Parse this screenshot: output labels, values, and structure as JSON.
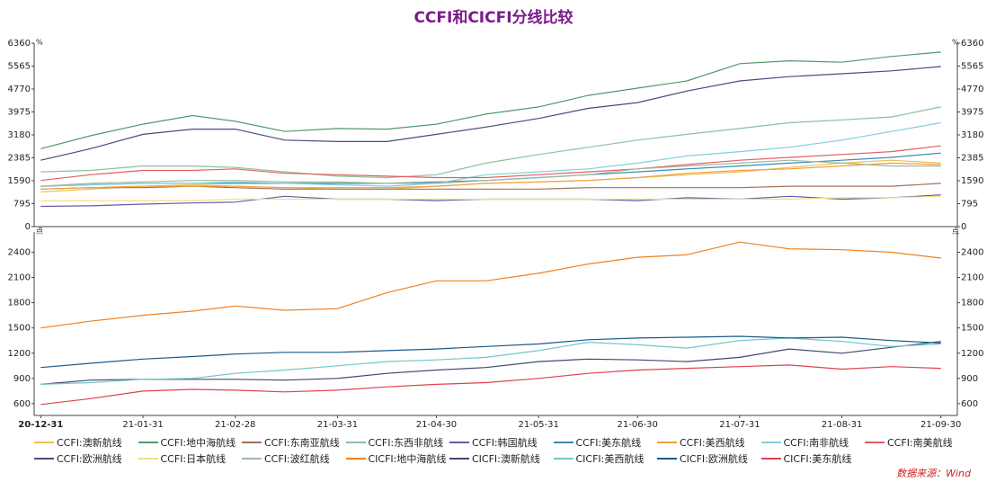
{
  "chart_data": [
    {
      "type": "line",
      "title": "CCFI和CICFI分线比较",
      "y_label": "%",
      "legend": "bottom",
      "x": [
        "20-12-31",
        "21-01-15",
        "21-01-31",
        "21-02-15",
        "21-02-28",
        "21-03-15",
        "21-03-31",
        "21-04-15",
        "21-04-30",
        "21-05-15",
        "21-05-31",
        "21-06-15",
        "21-06-30",
        "21-07-15",
        "21-07-31",
        "21-08-15",
        "21-08-31",
        "21-09-15",
        "21-09-30"
      ],
      "xlim": [
        "20-12-29",
        "21-10-05"
      ],
      "ylim": [
        0,
        6360
      ],
      "yticks": [
        0,
        795,
        1590,
        2385,
        3180,
        3975,
        4770,
        5565,
        6360
      ],
      "series": [
        {
          "name": "CCFI:澳新航线",
          "color": "#e8c050",
          "values": [
            1200,
            1300,
            1400,
            1450,
            1400,
            1350,
            1300,
            1300,
            1400,
            1500,
            1550,
            1600,
            1700,
            1800,
            1900,
            2050,
            2200,
            2300,
            2200
          ]
        },
        {
          "name": "CCFI:地中海航线",
          "color": "#4f9a6a",
          "values": [
            2700,
            3150,
            3550,
            3850,
            3650,
            3300,
            3400,
            3380,
            3550,
            3900,
            4150,
            4550,
            4800,
            5050,
            5650,
            5750,
            5700,
            5900,
            6050
          ]
        },
        {
          "name": "CCFI:东南亚航线",
          "color": "#a0705a",
          "values": [
            1300,
            1350,
            1350,
            1400,
            1350,
            1300,
            1300,
            1300,
            1300,
            1300,
            1300,
            1350,
            1350,
            1350,
            1350,
            1400,
            1400,
            1400,
            1500
          ]
        },
        {
          "name": "CCFI:东西非航线",
          "color": "#8cc0a0",
          "values": [
            1900,
            1950,
            2100,
            2100,
            2050,
            1900,
            1750,
            1700,
            1800,
            2200,
            2500,
            2750,
            3000,
            3200,
            3400,
            3600,
            3700,
            3800,
            4150
          ]
        },
        {
          "name": "CCFI:韩国航线",
          "color": "#6a5aa8",
          "values": [
            700,
            720,
            780,
            820,
            850,
            1050,
            950,
            950,
            900,
            950,
            950,
            950,
            900,
            1000,
            950,
            1050,
            950,
            1000,
            1100
          ]
        },
        {
          "name": "CCFI:美东航线",
          "color": "#3a8ab0",
          "values": [
            1400,
            1450,
            1500,
            1500,
            1500,
            1500,
            1500,
            1500,
            1550,
            1600,
            1700,
            1800,
            1900,
            2000,
            2100,
            2200,
            2300,
            2400,
            2550
          ]
        },
        {
          "name": "CCFI:美西航线",
          "color": "#f0a040",
          "values": [
            1300,
            1350,
            1400,
            1400,
            1400,
            1350,
            1350,
            1350,
            1400,
            1500,
            1550,
            1600,
            1700,
            1850,
            1950,
            2000,
            2100,
            2200,
            2150
          ]
        },
        {
          "name": "CCFI:南非航线",
          "color": "#80d0dc",
          "values": [
            1400,
            1450,
            1500,
            1500,
            1550,
            1500,
            1450,
            1400,
            1500,
            1800,
            1900,
            2000,
            2200,
            2450,
            2600,
            2750,
            3000,
            3300,
            3600
          ]
        },
        {
          "name": "CCFI:南美航线",
          "color": "#e06060",
          "values": [
            1600,
            1800,
            1950,
            1950,
            2000,
            1850,
            1800,
            1750,
            1700,
            1700,
            1800,
            1900,
            2000,
            2150,
            2300,
            2400,
            2500,
            2600,
            2800
          ]
        },
        {
          "name": "CCFI:欧洲航线",
          "color": "#4a4a80",
          "values": [
            2300,
            2700,
            3200,
            3380,
            3380,
            3000,
            2950,
            2950,
            3200,
            3450,
            3750,
            4100,
            4300,
            4700,
            5050,
            5200,
            5300,
            5400,
            5550
          ]
        },
        {
          "name": "CCFI:日本航线",
          "color": "#f0e080",
          "values": [
            900,
            900,
            900,
            900,
            950,
            950,
            950,
            950,
            950,
            950,
            950,
            950,
            950,
            950,
            950,
            950,
            1000,
            1000,
            1050
          ]
        },
        {
          "name": "CCFI:波红航线",
          "color": "#a0b8a0",
          "values": [
            1400,
            1500,
            1550,
            1600,
            1600,
            1550,
            1550,
            1500,
            1500,
            1600,
            1700,
            1800,
            2000,
            2100,
            2200,
            2300,
            2200,
            2100,
            2100
          ]
        }
      ]
    },
    {
      "type": "line",
      "y_label": "点",
      "x": [
        "20-12-31",
        "21-01-15",
        "21-01-31",
        "21-02-15",
        "21-02-28",
        "21-03-15",
        "21-03-31",
        "21-04-15",
        "21-04-30",
        "21-05-15",
        "21-05-31",
        "21-06-15",
        "21-06-30",
        "21-07-15",
        "21-07-31",
        "21-08-15",
        "21-08-31",
        "21-09-15",
        "21-09-30"
      ],
      "xlim": [
        "20-12-29",
        "21-10-05"
      ],
      "xticks": [
        "20-12-31",
        "21-01-31",
        "21-02-28",
        "21-03-31",
        "21-04-30",
        "21-05-31",
        "21-06-30",
        "21-07-31",
        "21-08-31",
        "21-09-30"
      ],
      "ylim": [
        460,
        2640
      ],
      "yticks": [
        600,
        900,
        1200,
        1500,
        1800,
        2100,
        2400
      ],
      "series": [
        {
          "name": "CICFI:地中海航线",
          "color": "#f08020",
          "values": [
            1500,
            1580,
            1650,
            1700,
            1760,
            1710,
            1730,
            1920,
            2060,
            2060,
            2150,
            2260,
            2340,
            2370,
            2520,
            2440,
            2430,
            2400,
            2330
          ]
        },
        {
          "name": "CICFI:澳新航线",
          "color": "#404870",
          "values": [
            830,
            880,
            890,
            890,
            890,
            880,
            900,
            960,
            1000,
            1030,
            1100,
            1130,
            1120,
            1100,
            1150,
            1250,
            1200,
            1270,
            1340
          ]
        },
        {
          "name": "CICFI:美西航线",
          "color": "#70c8c8",
          "values": [
            830,
            850,
            890,
            900,
            960,
            1000,
            1050,
            1100,
            1120,
            1150,
            1230,
            1330,
            1300,
            1260,
            1350,
            1380,
            1340,
            1280,
            1310
          ]
        },
        {
          "name": "CICFI:欧洲航线",
          "color": "#1a5a8a",
          "values": [
            1030,
            1080,
            1130,
            1160,
            1190,
            1210,
            1210,
            1230,
            1250,
            1280,
            1310,
            1360,
            1380,
            1390,
            1400,
            1380,
            1390,
            1350,
            1320
          ]
        },
        {
          "name": "CICFI:美东航线",
          "color": "#e04050",
          "values": [
            590,
            660,
            750,
            770,
            760,
            740,
            760,
            800,
            830,
            850,
            900,
            960,
            1000,
            1020,
            1040,
            1060,
            1010,
            1040,
            1020
          ]
        }
      ]
    }
  ],
  "source": "数据来源：Wind"
}
